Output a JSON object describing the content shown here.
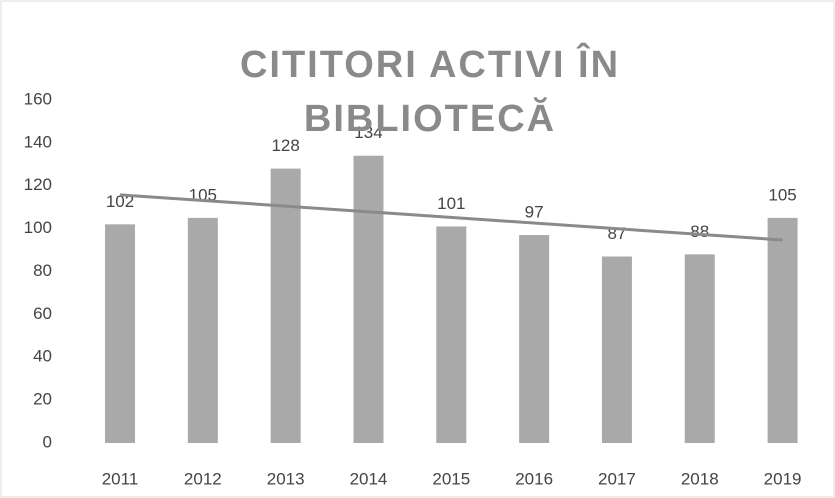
{
  "chart_data": {
    "type": "bar",
    "title": "CITITORI ACTIVI ÎN BIBLIOTECĂ",
    "categories": [
      "2011",
      "2012",
      "2013",
      "2014",
      "2015",
      "2016",
      "2017",
      "2018",
      "2019"
    ],
    "values": [
      102,
      105,
      128,
      134,
      101,
      97,
      87,
      88,
      105
    ],
    "color": "#a9a9a9",
    "trendline": "linear",
    "trendline_color": "#8a8a8a",
    "ylim": [
      0,
      160
    ],
    "yticks": [
      0,
      20,
      40,
      60,
      80,
      100,
      120,
      140,
      160
    ],
    "grid": false
  }
}
